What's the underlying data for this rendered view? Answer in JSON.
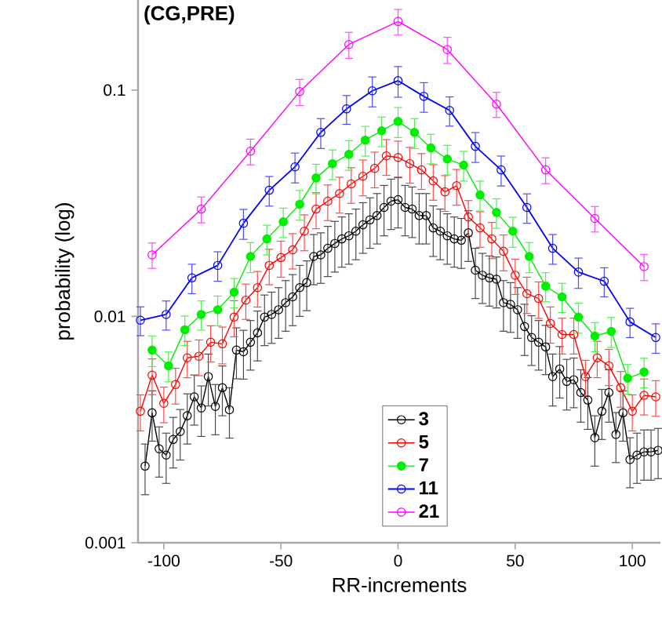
{
  "chart_data": {
    "type": "line",
    "title": "(CG,PRE)",
    "xlabel": "RR-increments",
    "ylabel": "probability (log)",
    "log": "y",
    "xlim": [
      -111,
      112
    ],
    "ylim": [
      0.001,
      0.25
    ],
    "xticks": [
      -100,
      -50,
      0,
      50,
      100
    ],
    "yticks": [
      0.001,
      0.01,
      0.1
    ],
    "legend": "bottom",
    "marker": "circle",
    "line_style": "solid",
    "series": [
      {
        "name": "3",
        "color": "#000000",
        "errors": [
          0.00055,
          0.00094,
          0.00065,
          0.00061,
          0.00072,
          0.00078,
          0.00091,
          0.0011,
          0.00099,
          0.0014,
          0.001,
          0.0012,
          0.00097,
          0.0018,
          0.0017,
          0.0019,
          0.0021,
          0.0025,
          0.0026,
          0.0027,
          0.0029,
          0.0031,
          0.0034,
          0.0035,
          0.0046,
          0.0047,
          0.005,
          0.0053,
          0.0055,
          0.0057,
          0.006,
          0.0064,
          0.0067,
          0.007,
          0.0076,
          0.0081,
          0.0082,
          0.0076,
          0.0075,
          0.007,
          0.007,
          0.0062,
          0.006,
          0.0057,
          0.0055,
          0.0054,
          0.0059,
          0.004,
          0.0038,
          0.0037,
          0.0037,
          0.0029,
          0.0028,
          0.0027,
          0.0023,
          0.002,
          0.0019,
          0.0018,
          0.0014,
          0.0015,
          0.0013,
          0.0013,
          0.0012,
          0.0011,
          0.00073,
          0.00095,
          0.0012,
          0.00075,
          0.00094,
          0.00058,
          0.00061,
          0.00063,
          0.00063,
          0.00064
        ],
        "x": [
          -108,
          -105,
          -102,
          -99,
          -96,
          -93,
          -90,
          -87,
          -84,
          -81,
          -78,
          -75,
          -72,
          -69,
          -66,
          -63,
          -60,
          -57,
          -54,
          -51,
          -48,
          -45,
          -42,
          -39,
          -36,
          -33,
          -30,
          -27,
          -24,
          -21,
          -18,
          -15,
          -12,
          -9,
          -6,
          -3,
          0,
          3,
          6,
          9,
          12,
          15,
          18,
          21,
          24,
          27,
          30,
          33,
          36,
          39,
          42,
          45,
          48,
          51,
          54,
          57,
          60,
          63,
          66,
          69,
          72,
          75,
          78,
          81,
          84,
          87,
          90,
          93,
          96,
          99,
          102,
          105,
          108,
          111
        ],
        "values": [
          0.00218,
          0.00375,
          0.0026,
          0.00244,
          0.00286,
          0.0031,
          0.00364,
          0.00441,
          0.00394,
          0.00542,
          0.004,
          0.00484,
          0.00387,
          0.0071,
          0.00698,
          0.00769,
          0.00846,
          0.00993,
          0.0102,
          0.0107,
          0.0115,
          0.0122,
          0.0134,
          0.0141,
          0.0184,
          0.0187,
          0.02,
          0.021,
          0.022,
          0.0227,
          0.0238,
          0.0254,
          0.0267,
          0.0279,
          0.0303,
          0.0323,
          0.0328,
          0.0303,
          0.0298,
          0.0279,
          0.0279,
          0.0246,
          0.0238,
          0.0227,
          0.022,
          0.0217,
          0.0234,
          0.016,
          0.0152,
          0.0148,
          0.0146,
          0.0115,
          0.0113,
          0.0107,
          0.00902,
          0.00807,
          0.00769,
          0.00733,
          0.00542,
          0.00586,
          0.00516,
          0.00525,
          0.00461,
          0.00427,
          0.00291,
          0.00381,
          0.00461,
          0.00301,
          0.00375,
          0.00233,
          0.00244,
          0.00252,
          0.00252,
          0.00256
        ]
      },
      {
        "name": "5",
        "color": "#ff0000",
        "errors": [
          0.00069,
          0.00099,
          0.00074,
          0.0009,
          0.0012,
          0.0012,
          0.0014,
          0.0014,
          0.0018,
          0.0021,
          0.0024,
          0.003,
          0.0033,
          0.0035,
          0.0043,
          0.0054,
          0.0058,
          0.0063,
          0.0069,
          0.0075,
          0.0081,
          0.0092,
          0.0091,
          0.0085,
          0.008,
          0.0071,
          0.0064,
          0.0068,
          0.005,
          0.0044,
          0.004,
          0.0035,
          0.0027,
          0.0023,
          0.0022,
          0.0017,
          0.0015,
          0.0015,
          0.00098,
          0.0012,
          0.0011,
          0.00087,
          0.00069,
          0.00081,
          0.00079
        ],
        "x": [
          -110,
          -105,
          -100,
          -95,
          -90,
          -85,
          -80,
          -75,
          -70,
          -65,
          -60,
          -55,
          -50,
          -45,
          -40,
          -35,
          -30,
          -25,
          -20,
          -15,
          -10,
          -5,
          0,
          5,
          10,
          15,
          20,
          25,
          30,
          35,
          40,
          45,
          50,
          55,
          60,
          65,
          70,
          75,
          80,
          85,
          90,
          95,
          100,
          105,
          110
        ],
        "values": [
          0.00381,
          0.0055,
          0.00413,
          0.005,
          0.00656,
          0.00667,
          0.00769,
          0.00757,
          0.00993,
          0.0118,
          0.0134,
          0.0168,
          0.0182,
          0.0197,
          0.0238,
          0.0298,
          0.0323,
          0.0349,
          0.0385,
          0.0416,
          0.0451,
          0.0512,
          0.0504,
          0.0473,
          0.0444,
          0.0397,
          0.0355,
          0.0378,
          0.0275,
          0.0246,
          0.022,
          0.0194,
          0.0152,
          0.0126,
          0.012,
          0.00931,
          0.00832,
          0.00832,
          0.00542,
          0.00656,
          0.00605,
          0.00484,
          0.00381,
          0.00448,
          0.00441
        ]
      },
      {
        "name": "7",
        "color": "#00ee00",
        "errors": [
          0.0011,
          0.00091,
          0.0013,
          0.0015,
          0.0016,
          0.0019,
          0.0028,
          0.0033,
          0.0039,
          0.0047,
          0.0061,
          0.0071,
          0.0078,
          0.009,
          0.0099,
          0.011,
          0.0098,
          0.0083,
          0.0074,
          0.007,
          0.0052,
          0.0043,
          0.0036,
          0.0028,
          0.002,
          0.0018,
          0.0015,
          0.0012,
          0.0013,
          0.0008,
          0.00085
        ],
        "marker": "filled circle",
        "x": [
          -105,
          -98,
          -91,
          -84,
          -77,
          -70,
          -63,
          -56,
          -49,
          -42,
          -35,
          -28,
          -21,
          -14,
          -7,
          0,
          7,
          14,
          21,
          28,
          35,
          42,
          49,
          56,
          63,
          70,
          77,
          84,
          91,
          98,
          105
        ],
        "values": [
          0.0071,
          0.00605,
          0.00873,
          0.0102,
          0.0107,
          0.0128,
          0.0184,
          0.022,
          0.0262,
          0.0313,
          0.0409,
          0.0473,
          0.052,
          0.0601,
          0.0661,
          0.0727,
          0.065,
          0.0555,
          0.0496,
          0.0466,
          0.0344,
          0.0288,
          0.0238,
          0.0184,
          0.0136,
          0.0122,
          0.00993,
          0.00819,
          0.00859,
          0.00533,
          0.00568
        ]
      },
      {
        "name": "11",
        "color": "#0000ff",
        "errors": [
          0.0014,
          0.0015,
          0.0022,
          0.0025,
          0.0039,
          0.0054,
          0.0069,
          0.0098,
          0.012,
          0.015,
          0.017,
          0.014,
          0.012,
          0.0085,
          0.0067,
          0.0045,
          0.003,
          0.0024,
          0.0021,
          0.0014,
          0.0012
        ],
        "x": [
          -110,
          -99,
          -88,
          -77,
          -66,
          -55,
          -44,
          -33,
          -22,
          -11,
          0,
          11,
          22,
          33,
          44,
          55,
          66,
          77,
          88,
          99,
          110
        ],
        "values": [
          0.00962,
          0.0102,
          0.0148,
          0.0168,
          0.0258,
          0.0361,
          0.0458,
          0.065,
          0.0826,
          0.0993,
          0.11,
          0.0938,
          0.0813,
          0.0564,
          0.0444,
          0.0303,
          0.02,
          0.0157,
          0.0143,
          0.00946,
          0.00807
        ]
      },
      {
        "name": "21",
        "color": "#ff00ff",
        "errors": [
          0.0024,
          0.0039,
          0.007,
          0.013,
          0.021,
          0.026,
          0.02,
          0.011,
          0.0058,
          0.0035,
          0.0022
        ],
        "x": [
          -105,
          -84,
          -63,
          -42,
          -21,
          0,
          21,
          42,
          63,
          84,
          105
        ],
        "values": [
          0.0187,
          0.0298,
          0.0537,
          0.0984,
          0.159,
          0.201,
          0.151,
          0.0867,
          0.0444,
          0.0271,
          0.0166
        ]
      }
    ]
  }
}
